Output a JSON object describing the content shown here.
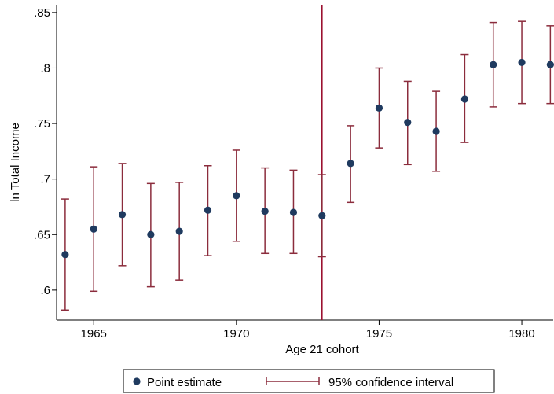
{
  "chart_data": {
    "type": "scatter",
    "title": "",
    "xlabel": "Age 21 cohort",
    "ylabel": "ln Total Income",
    "xlim": [
      1963.7,
      1981.1
    ],
    "ylim": [
      0.573,
      0.857
    ],
    "x_ticks": [
      1965,
      1970,
      1975,
      1980
    ],
    "x_tick_labels": [
      "1965",
      "1970",
      "1975",
      "1980"
    ],
    "y_ticks": [
      0.6,
      0.65,
      0.7,
      0.75,
      0.8,
      0.85
    ],
    "y_tick_labels": [
      ".6",
      ".65",
      ".7",
      ".75",
      ".8",
      ".85"
    ],
    "vertical_line_x": 1973,
    "grid": false,
    "legend_position": "bottom",
    "colors": {
      "point": "#1f3a5f",
      "ci": "#8b2c3c",
      "vline": "#9b1030"
    },
    "series": [
      {
        "name": "Point estimate",
        "x": [
          1964,
          1965,
          1966,
          1967,
          1968,
          1969,
          1970,
          1971,
          1972,
          1973,
          1974,
          1975,
          1976,
          1977,
          1978,
          1979,
          1980,
          1981
        ],
        "values": [
          0.632,
          0.655,
          0.668,
          0.65,
          0.653,
          0.672,
          0.685,
          0.671,
          0.67,
          0.667,
          0.714,
          0.764,
          0.751,
          0.743,
          0.772,
          0.803,
          0.805,
          0.803
        ]
      },
      {
        "name": "95% confidence interval",
        "x": [
          1964,
          1965,
          1966,
          1967,
          1968,
          1969,
          1970,
          1971,
          1972,
          1973,
          1974,
          1975,
          1976,
          1977,
          1978,
          1979,
          1980,
          1981
        ],
        "lower": [
          0.582,
          0.599,
          0.622,
          0.603,
          0.609,
          0.631,
          0.644,
          0.633,
          0.633,
          0.63,
          0.679,
          0.728,
          0.713,
          0.707,
          0.733,
          0.765,
          0.768,
          0.768
        ],
        "upper": [
          0.682,
          0.711,
          0.714,
          0.696,
          0.697,
          0.712,
          0.726,
          0.71,
          0.708,
          0.704,
          0.748,
          0.8,
          0.788,
          0.779,
          0.812,
          0.841,
          0.842,
          0.838
        ]
      }
    ]
  }
}
